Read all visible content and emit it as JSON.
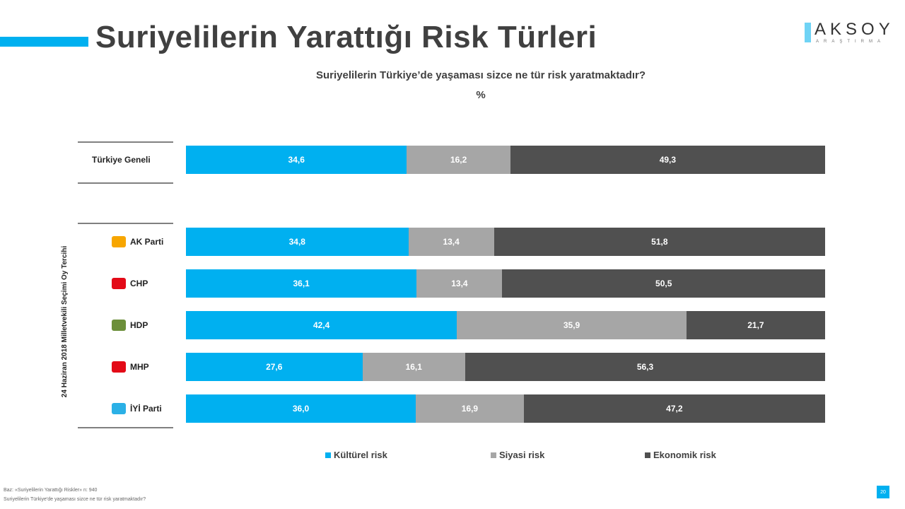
{
  "title": "Suriyelilerin Yarattığı Risk Türleri",
  "logo": {
    "brand": "AKSOY",
    "sub": "ARAŞTIRMA"
  },
  "footer": {
    "base": "Baz: «Suriyelilerin Yarattığı Riskler» n: 940",
    "question": "Suriyelilerin Türkiye'de yaşaması sizce ne tür risk yaratmaktadır?"
  },
  "page_number": "20",
  "chart_data": {
    "type": "bar",
    "orientation": "horizontal-stacked-100",
    "title": "Suriyelilerin Türkiye’de yaşaması sizce ne tür risk yaratmaktadır?",
    "unit": "%",
    "group_label": "24 Haziran 2018 Milletvekili Seçimi Oy Tercihi",
    "categories": [
      "Türkiye Geneli",
      "AK Parti",
      "CHP",
      "HDP",
      "MHP",
      "İYİ Parti"
    ],
    "series": [
      {
        "name": "Kültürel risk",
        "color": "#00b0f0",
        "values": [
          34.6,
          34.8,
          36.1,
          42.4,
          27.6,
          36.0
        ],
        "labels": [
          "34,6",
          "34,8",
          "36,1",
          "42,4",
          "27,6",
          "36,0"
        ]
      },
      {
        "name": "Siyasi risk",
        "color": "#a6a6a6",
        "values": [
          16.2,
          13.4,
          13.4,
          35.9,
          16.1,
          16.9
        ],
        "labels": [
          "16,2",
          "13,4",
          "13,4",
          "35,9",
          "16,1",
          "16,9"
        ]
      },
      {
        "name": "Ekonomik risk",
        "color": "#505050",
        "values": [
          49.3,
          51.8,
          50.5,
          21.7,
          56.3,
          47.2
        ],
        "labels": [
          "49,3",
          "51,8",
          "50,5",
          "21,7",
          "56,3",
          "47,2"
        ]
      }
    ],
    "legend": "bottom",
    "party_logo_colors": [
      "#f7a600",
      "#e30a17",
      "#6c8f3a",
      "#e30a17",
      "#2bb0e6"
    ]
  }
}
